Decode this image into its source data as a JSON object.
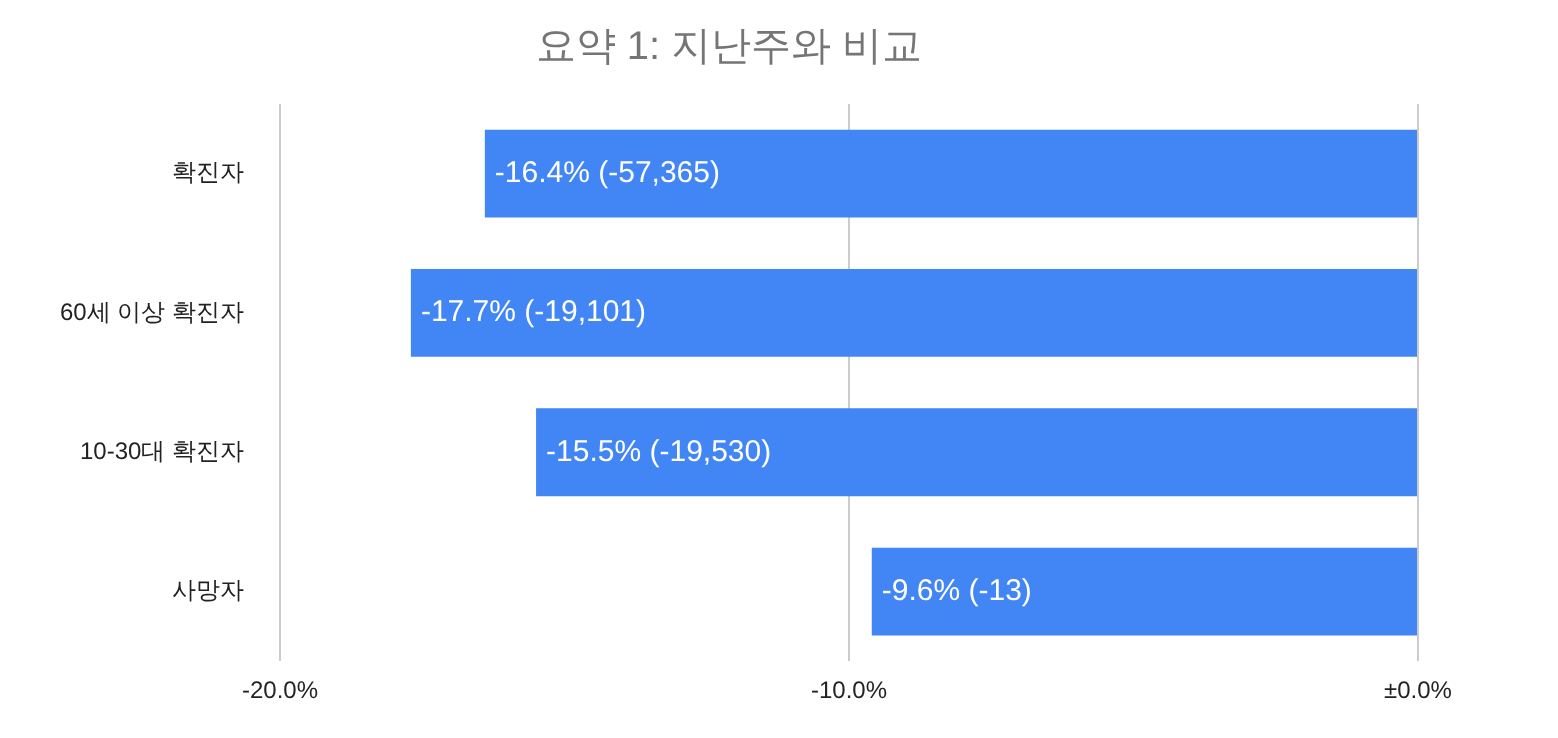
{
  "chart_data": {
    "type": "bar",
    "orientation": "horizontal",
    "title": "요약 1: 지난주와 비교",
    "categories": [
      "확진자",
      "60세 이상 확진자",
      "10-30대 확진자",
      "사망자"
    ],
    "values": [
      -16.4,
      -17.7,
      -15.5,
      -9.6
    ],
    "color": "#4285f4",
    "value_labels": [
      "-16.4% (-57,365)",
      "-17.7% (-19,101)",
      "-15.5% (-19,530)",
      "-9.6% (-13)"
    ],
    "xlim": [
      -20,
      0
    ],
    "xticks": [
      {
        "value": -20,
        "label": "-20.0%"
      },
      {
        "value": -10,
        "label": "-10.0%"
      },
      {
        "value": 0,
        "label": "±0.0%"
      }
    ],
    "grid": "x",
    "legend": false
  }
}
